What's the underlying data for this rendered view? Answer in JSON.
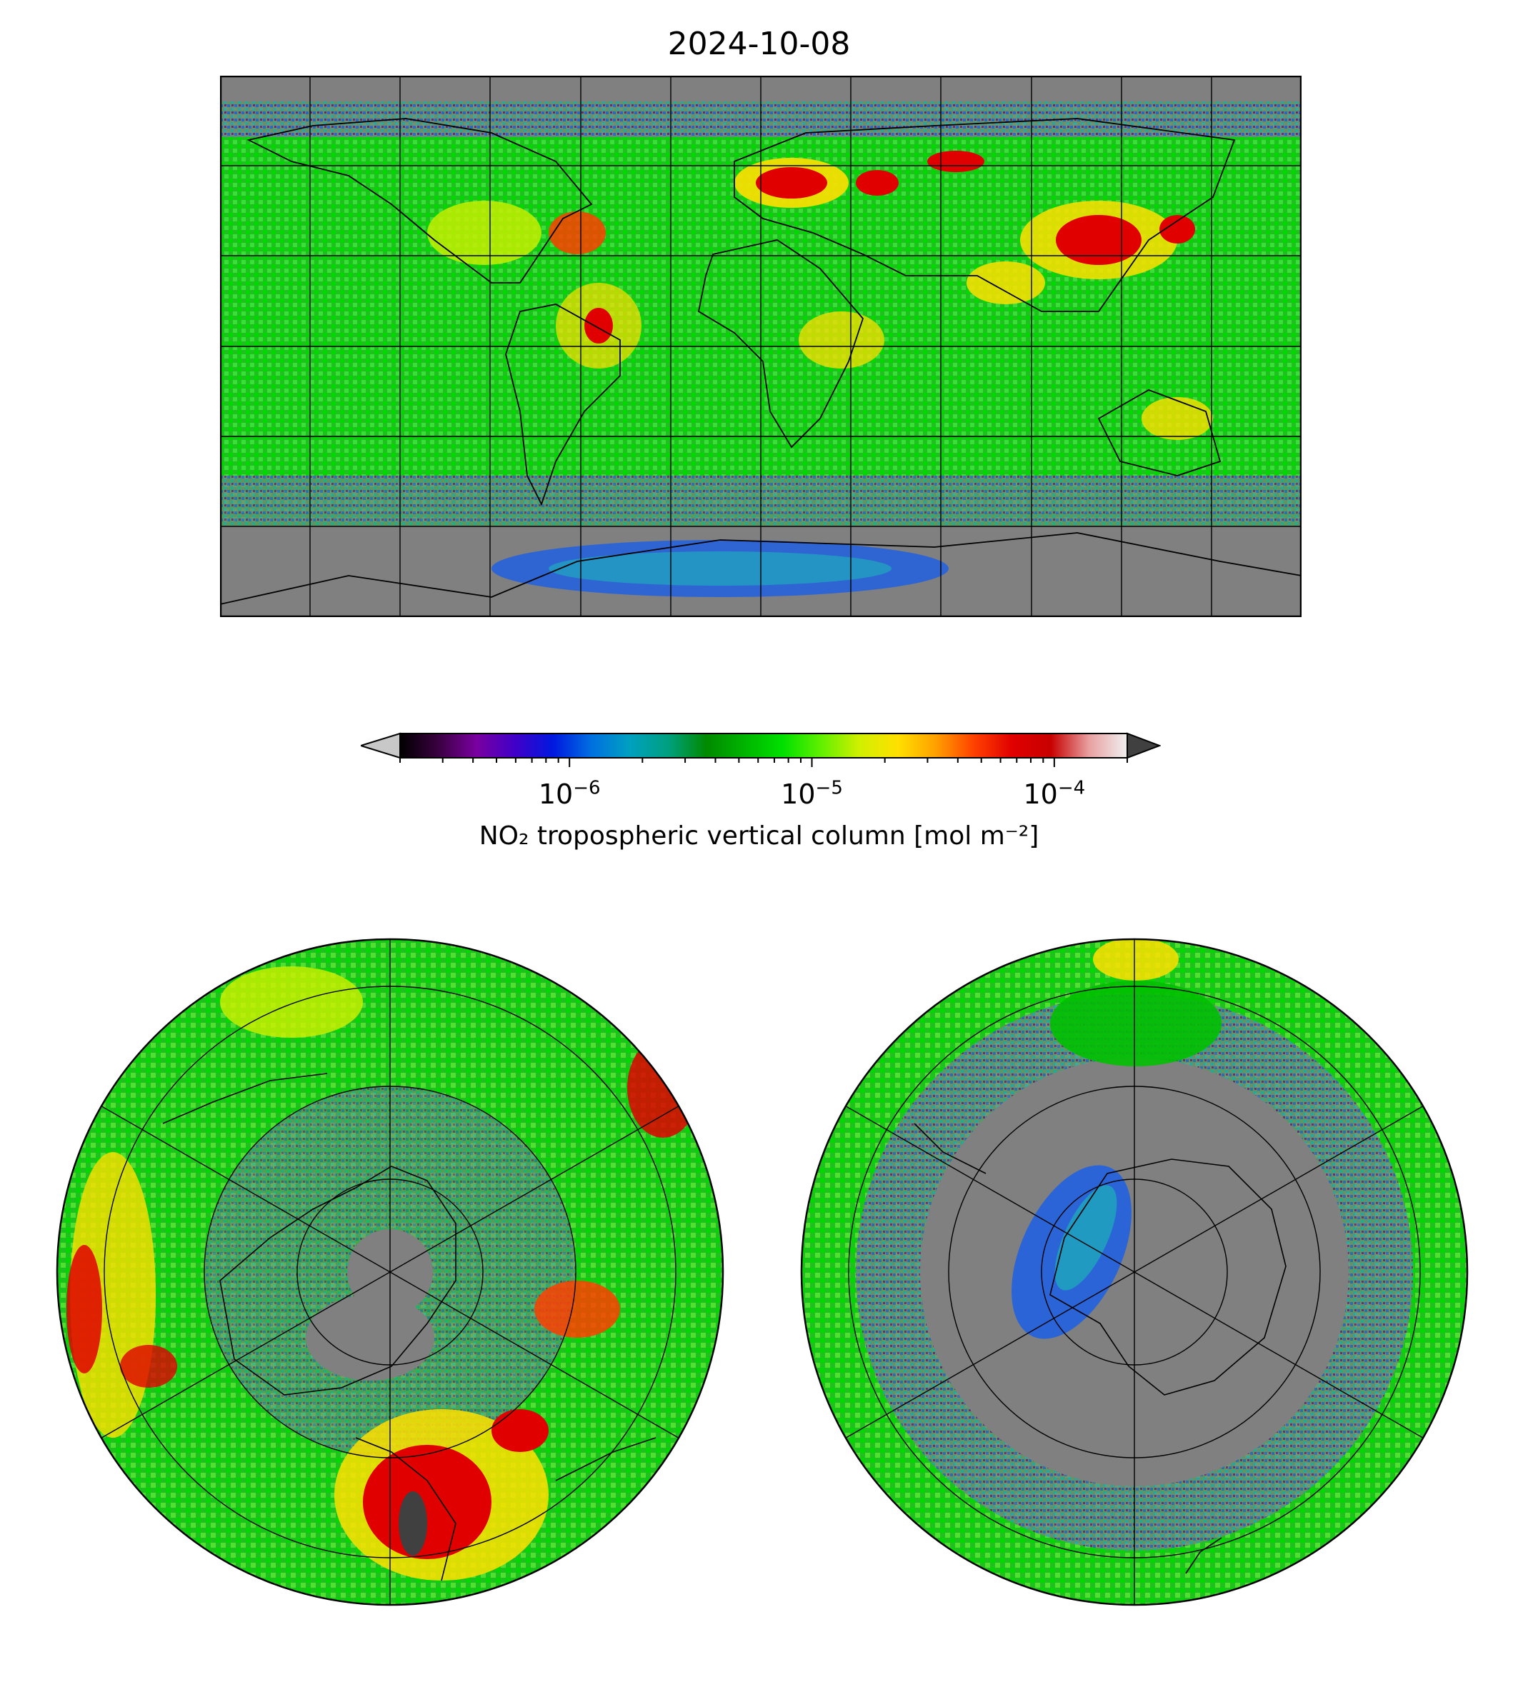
{
  "title": "2024-10-08",
  "colorbar": {
    "label": "NO₂ tropospheric vertical column [mol m⁻²]",
    "scale": "log",
    "range": [
      2e-07,
      0.0002
    ],
    "ticks": [
      {
        "base": "10",
        "exp": "−6",
        "value": 1e-06
      },
      {
        "base": "10",
        "exp": "−5",
        "value": 1e-05
      },
      {
        "base": "10",
        "exp": "−4",
        "value": 0.0001
      }
    ],
    "extend": "both",
    "stops": [
      "#000000",
      "#3a0040",
      "#7a00a0",
      "#4000c8",
      "#0018e0",
      "#0070e0",
      "#00a0c0",
      "#00a080",
      "#008a00",
      "#00b400",
      "#00e000",
      "#60f000",
      "#d0f000",
      "#ffe000",
      "#ffa000",
      "#ff4000",
      "#e00000",
      "#c80000",
      "#e8a0a0",
      "#f0f0f0"
    ],
    "under_color": "#c8c8c8",
    "over_color": "#404040"
  },
  "maps": {
    "global": {
      "projection": "plate carree",
      "gridlines": true
    },
    "north_polar": {
      "projection": "north polar stereographic",
      "gridlines": true
    },
    "south_polar": {
      "projection": "south polar stereographic",
      "gridlines": true
    }
  },
  "colors": {
    "no_data": "#808080",
    "coast": "#000000"
  }
}
